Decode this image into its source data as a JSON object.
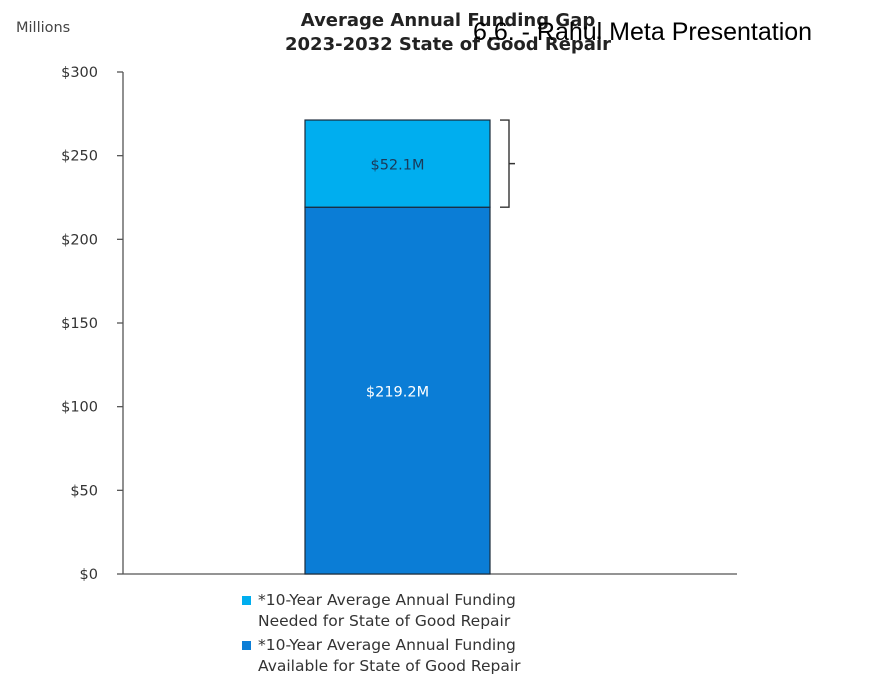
{
  "chart_data": {
    "type": "bar",
    "stacked": true,
    "title": "Average Annual Funding Gap",
    "subtitle": "2023-2032 State of Good Repair",
    "unit_label": "Millions",
    "categories": [
      ""
    ],
    "series": [
      {
        "name": "*10-Year Average Annual Funding Available for State of Good Repair",
        "name_lines": [
          "*10-Year Average Annual Funding",
          "Available for State of Good Repair"
        ],
        "values": [
          219.2
        ],
        "label": "$219.2M",
        "color": "#0b7dd6",
        "label_color": "#ffffff"
      },
      {
        "name": "*10-Year Average Annual Funding Needed for State of Good Repair",
        "name_lines": [
          "*10-Year Average Annual Funding",
          "Needed for State of Good Repair"
        ],
        "values": [
          52.1
        ],
        "label": "$52.1M",
        "color": "#00aeef",
        "label_color": "#1a3a5a"
      }
    ],
    "ylim": [
      0,
      300
    ],
    "yticks": [
      "$0",
      "$50",
      "$100",
      "$150",
      "$200",
      "$250",
      "$300"
    ],
    "ytick_values": [
      0,
      50,
      100,
      150,
      200,
      250,
      300
    ],
    "grid": false,
    "legend_position": "bottom",
    "gap_bracket": true
  },
  "overlay": {
    "text": "6.6. - Rahul Meta Presentation"
  }
}
